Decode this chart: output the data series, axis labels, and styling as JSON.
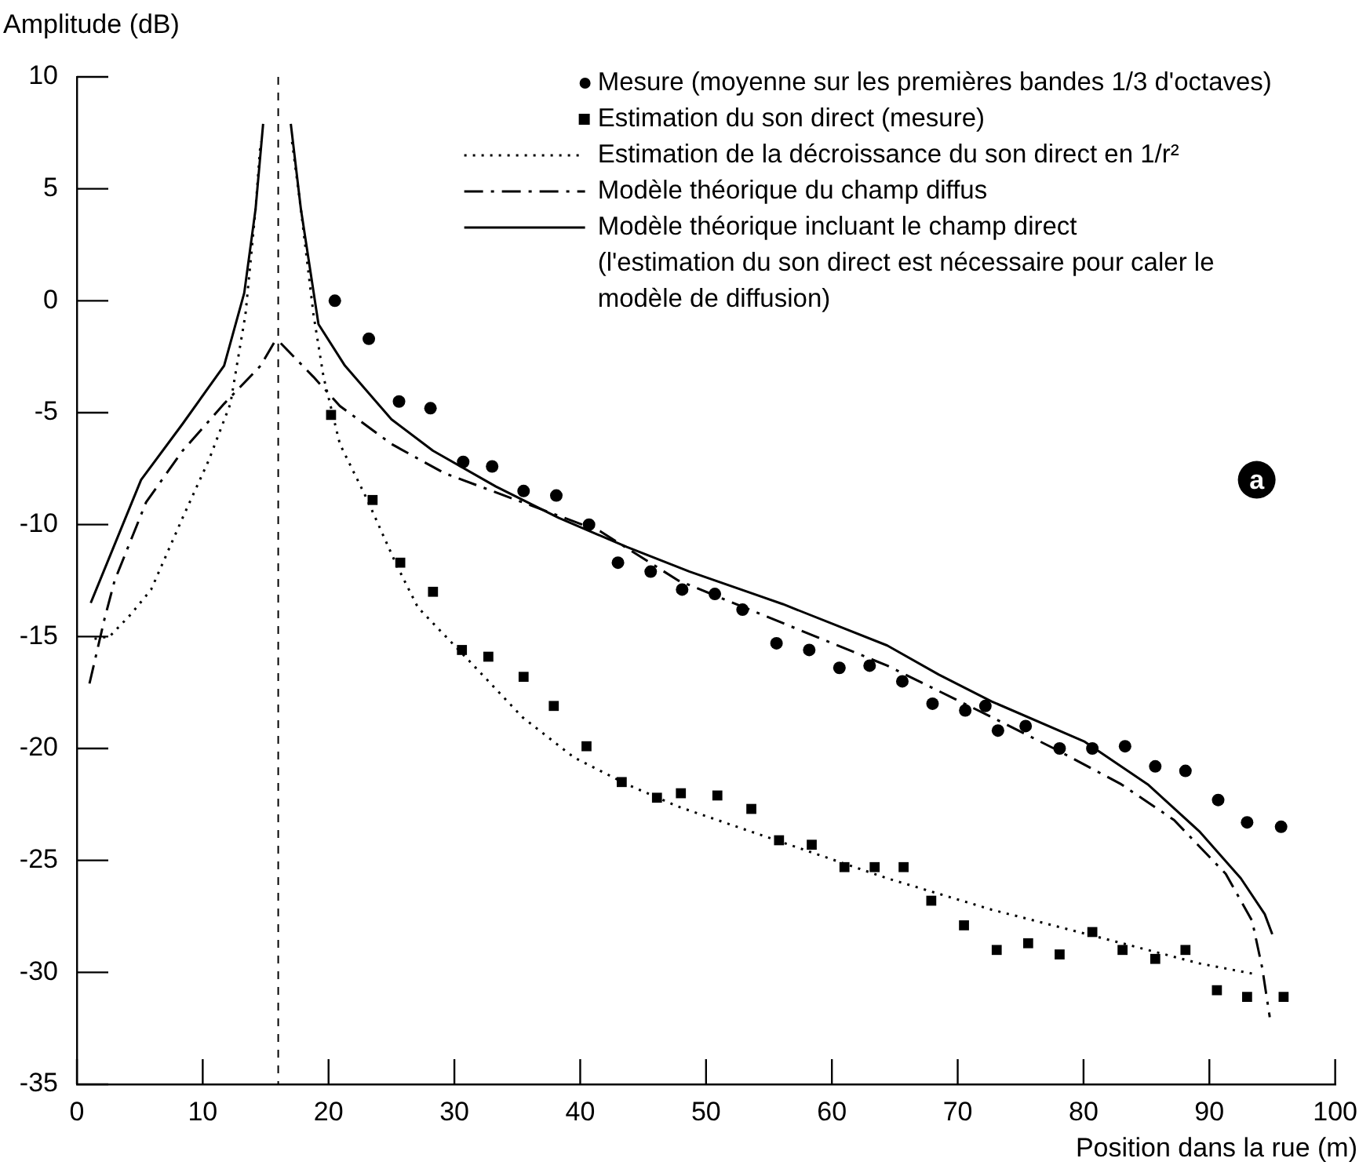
{
  "chart_data": {
    "type": "line",
    "xlabel": "Position dans la rue (m)",
    "ylabel": "Amplitude (dB)",
    "xlim": [
      0,
      100
    ],
    "xticks": [
      0,
      10,
      20,
      30,
      40,
      50,
      60,
      70,
      80,
      90,
      100
    ],
    "ylim": [
      -35,
      10
    ],
    "yticks": [
      -35,
      -30,
      -25,
      -20,
      -15,
      -10,
      -5,
      0,
      5,
      10
    ],
    "legend": "top right",
    "annotations": [
      "a"
    ],
    "ref_lines": [
      {
        "axis": "x",
        "value": 16,
        "color": "#000000",
        "line_style": "dashed"
      }
    ],
    "series": [
      {
        "name": "Mesure (moyenne sur les premières bandes 1/3 d'octaves)",
        "type": "scatter",
        "marker": "circle",
        "color": "#000000",
        "x": [
          20.5,
          23.2,
          25.6,
          28.1,
          30.7,
          33,
          35.5,
          38.1,
          40.7,
          43,
          45.6,
          48.1,
          50.7,
          52.9,
          55.6,
          58.2,
          60.6,
          63,
          65.6,
          68,
          70.6,
          72.2,
          73.2,
          75.4,
          78.1,
          80.7,
          83.3,
          85.7,
          88.1,
          90.7,
          93,
          95.7
        ],
        "values": [
          0,
          -1.7,
          -4.5,
          -4.8,
          -7.2,
          -7.4,
          -8.5,
          -8.7,
          -10,
          -11.7,
          -12.1,
          -12.9,
          -13.1,
          -13.8,
          -15.3,
          -15.6,
          -16.4,
          -16.3,
          -17,
          -18,
          -18.3,
          -18.1,
          -19.2,
          -19,
          -20,
          -20,
          -19.9,
          -20.8,
          -21,
          -22.3,
          -23.3,
          -23.5
        ]
      },
      {
        "name": "Estimation du son direct (mesure)",
        "type": "scatter",
        "marker": "square",
        "color": "#000000",
        "x": [
          20.2,
          23.5,
          25.7,
          28.3,
          30.6,
          32.7,
          35.5,
          37.9,
          40.5,
          43.3,
          46.1,
          48,
          50.9,
          53.6,
          55.8,
          58.4,
          61,
          63.4,
          65.7,
          67.9,
          70.5,
          73.1,
          75.6,
          78.1,
          80.7,
          83.1,
          85.7,
          88.1,
          90.6,
          93,
          95.9
        ],
        "values": [
          -5.1,
          -8.9,
          -11.7,
          -13,
          -15.6,
          -15.9,
          -16.8,
          -18.1,
          -19.9,
          -21.5,
          -22.2,
          -22,
          -22.1,
          -22.7,
          -24.1,
          -24.3,
          -25.3,
          -25.3,
          -25.3,
          -26.8,
          -27.9,
          -29,
          -28.7,
          -29.2,
          -28.2,
          -29,
          -29.4,
          -29,
          -30.8,
          -31.1,
          -31.1
        ]
      },
      {
        "name": "Estimation de la décroissance du son direct en 1/r²",
        "line_style": "dotted",
        "color": "#000000",
        "x": [
          1.4,
          2.6,
          4.3,
          5.9,
          8.4,
          10.5,
          12.2,
          13.4,
          14.2,
          14.6,
          null,
          17.1,
          17.8,
          18.8,
          19.6,
          20.9,
          23,
          25.4,
          27.1,
          31.2,
          35.4,
          39.5,
          43.7,
          47.8,
          56.1,
          64.4,
          72.7,
          81,
          89.2,
          93.8
        ],
        "values": [
          -15.1,
          -15,
          -14,
          -12.9,
          -9.7,
          -7.1,
          -4.6,
          -0.6,
          4.1,
          7.1,
          null,
          7.1,
          4.1,
          -0.6,
          -3.4,
          -6.4,
          -8.8,
          -11.8,
          -13.7,
          -16.1,
          -18.6,
          -20.4,
          -21.6,
          -22.6,
          -24.2,
          -25.8,
          -27.2,
          -28.4,
          -29.6,
          -30.1
        ]
      },
      {
        "name": "Modèle théorique du champ diffus",
        "line_style": "dashdot",
        "color": "#000000",
        "x": [
          1,
          2.2,
          3,
          5.5,
          8.4,
          11.7,
          14.6,
          15.8,
          null,
          16.2,
          18.8,
          20.9,
          25,
          29.2,
          35.4,
          41.6,
          47.8,
          56.1,
          64.4,
          72.7,
          78,
          83,
          87.2,
          91.3,
          93.4,
          94.2,
          94.8
        ],
        "values": [
          -17.1,
          -14.2,
          -12.5,
          -9,
          -6.7,
          -4.6,
          -2.9,
          -1.75,
          null,
          -1.9,
          -3.4,
          -4.7,
          -6.4,
          -7.7,
          -9,
          -10.3,
          -12.5,
          -14.4,
          -16.3,
          -18.6,
          -20.1,
          -21.6,
          -23.2,
          -25.6,
          -27.7,
          -29.8,
          -32
        ]
      },
      {
        "name": "Modèle théorique incluant le champ direct\n(l'estimation du son direct est nécessaire pour caler le\nmodèle de diffusion)",
        "line_style": "solid",
        "color": "#000000",
        "x": [
          1.1,
          5.1,
          8.4,
          11.7,
          13.3,
          14.2,
          14.8,
          null,
          17,
          17.8,
          19.2,
          21.3,
          25,
          28.3,
          33.3,
          38.3,
          43.7,
          48.7,
          56.1,
          64.4,
          68.5,
          72.7,
          80.1,
          85.1,
          89.2,
          92.5,
          94.4,
          95
        ],
        "values": [
          -13.5,
          -8,
          -5.5,
          -2.9,
          0.35,
          4.1,
          7.9,
          null,
          7.9,
          4.1,
          -1.05,
          -2.9,
          -5.3,
          -6.7,
          -8.3,
          -9.7,
          -11,
          -12.1,
          -13.55,
          -15.4,
          -16.7,
          -17.9,
          -19.7,
          -21.6,
          -23.7,
          -25.8,
          -27.4,
          -28.3
        ]
      }
    ]
  }
}
